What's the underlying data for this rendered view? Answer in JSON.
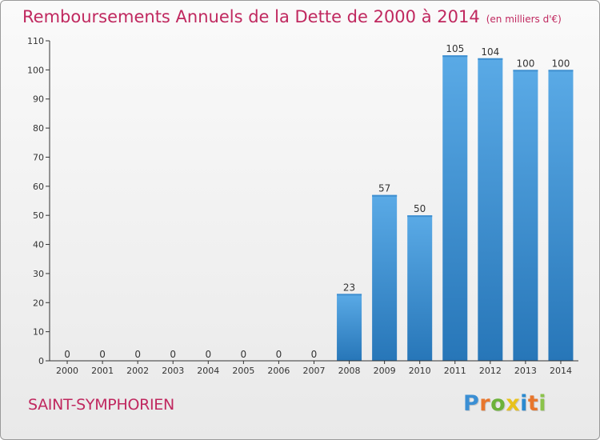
{
  "title": "Remboursements Annuels de la Dette de 2000 à 2014",
  "unit": "(en milliers d'€)",
  "commune": "SAINT-SYMPHORIEN",
  "logo": {
    "text": "Proxiti",
    "letters": [
      "P",
      "r",
      "o",
      "x",
      "i",
      "t",
      "i"
    ],
    "colors": [
      "#3b8fd4",
      "#e8762c",
      "#6cb23a",
      "#e8c21c",
      "#2a8ad0",
      "#e8762c",
      "#8bc34a"
    ]
  },
  "colors": {
    "title": "#c0285f",
    "bar_top": "#5aaae6",
    "bar_bottom": "#2776b8",
    "axis": "#333333"
  },
  "chart_data": {
    "type": "bar",
    "categories": [
      "2000",
      "2001",
      "2002",
      "2003",
      "2004",
      "2005",
      "2006",
      "2007",
      "2008",
      "2009",
      "2010",
      "2011",
      "2012",
      "2013",
      "2014"
    ],
    "values": [
      0,
      0,
      0,
      0,
      0,
      0,
      0,
      0,
      23,
      57,
      50,
      105,
      104,
      100,
      100
    ],
    "ylim": [
      0,
      110
    ],
    "yticks": [
      0,
      10,
      20,
      30,
      40,
      50,
      60,
      70,
      80,
      90,
      100,
      110
    ],
    "grid": false
  }
}
